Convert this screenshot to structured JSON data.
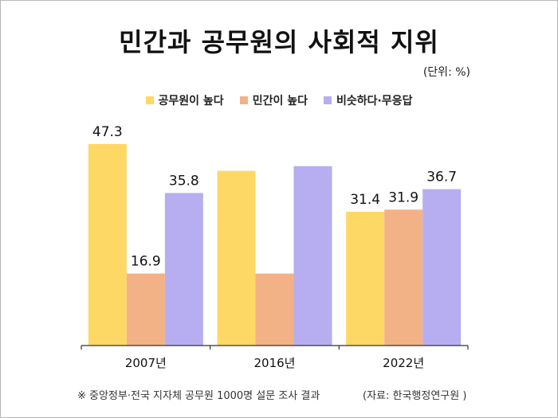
{
  "chart_data": {
    "type": "bar",
    "title": "민간과 공무원의 사회적 지위",
    "unit_label": "(단위: %)",
    "categories": [
      "2007년",
      "2016년",
      "2022년"
    ],
    "series": [
      {
        "name": "공무원이 높다",
        "color": "#FDD865",
        "values": [
          47.3,
          41.0,
          31.4
        ],
        "labels": [
          "47.3",
          "",
          "31.4"
        ]
      },
      {
        "name": "민간이 높다",
        "color": "#F2B286",
        "values": [
          16.9,
          16.9,
          31.9
        ],
        "labels": [
          "16.9",
          "",
          "31.9"
        ]
      },
      {
        "name": "비슷하다·무응답",
        "color": "#B6AEF0",
        "values": [
          35.8,
          42.1,
          36.7
        ],
        "labels": [
          "35.8",
          "",
          "36.7"
        ]
      }
    ],
    "ylim": [
      0,
      56.8
    ],
    "grid": false,
    "legend_position": "top-center",
    "footnote": "※ 중앙정부·전국 지자체 공무원 1000명 설문 조사 결과",
    "source": "(자료: 한국행정연구원 )"
  }
}
